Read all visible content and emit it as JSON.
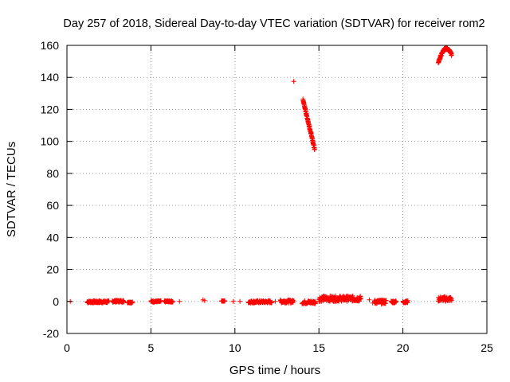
{
  "chart_data": {
    "type": "scatter",
    "title": "Day 257 of 2018, Sidereal Day-to-day VTEC variation (SDTVAR) for receiver rom2",
    "xlabel": "GPS time / hours",
    "ylabel": "SDTVAR / TECUs",
    "xlim": [
      0,
      25
    ],
    "ylim": [
      -20,
      160
    ],
    "xticks": [
      0,
      5,
      10,
      15,
      20,
      25
    ],
    "yticks": [
      -20,
      0,
      20,
      40,
      60,
      80,
      100,
      120,
      140,
      160
    ],
    "grid": true,
    "marker": "+",
    "color": "#ff0000",
    "series": [
      {
        "name": "SDTVAR",
        "segments": [
          {
            "x_range": [
              1.2,
              2.5
            ],
            "y": [
              -1,
              0.5
            ]
          },
          {
            "x_range": [
              2.7,
              3.4
            ],
            "y": [
              -0.5,
              0.8
            ]
          },
          {
            "x_range": [
              3.6,
              3.9
            ],
            "y": [
              -1,
              0
            ]
          },
          {
            "x_range": [
              5.0,
              5.6
            ],
            "y": [
              -0.5,
              0.5
            ]
          },
          {
            "x_range": [
              5.8,
              6.3
            ],
            "y": [
              -0.5,
              0.5
            ]
          },
          {
            "x_range": [
              9.2,
              9.4
            ],
            "y": [
              0,
              0.5
            ]
          },
          {
            "x_range": [
              10.8,
              12.2
            ],
            "y": [
              -1,
              0.5
            ]
          },
          {
            "x_range": [
              12.7,
              13.5
            ],
            "y": [
              -1,
              1
            ]
          },
          {
            "x_range": [
              14.0,
              14.8
            ],
            "y": [
              -1.5,
              0.5
            ]
          },
          {
            "x_range": [
              15.0,
              17.5
            ],
            "y": [
              0,
              3.5
            ]
          },
          {
            "x_range": [
              18.3,
              19.0
            ],
            "y": [
              -1.5,
              1
            ]
          },
          {
            "x_range": [
              19.3,
              19.6
            ],
            "y": [
              -1,
              0.5
            ]
          },
          {
            "x_range": [
              20.0,
              20.3
            ],
            "y": [
              -1,
              0.5
            ]
          },
          {
            "x_range": [
              22.1,
              22.9
            ],
            "y": [
              0,
              3
            ]
          }
        ],
        "points": [
          [
            0.2,
            0
          ],
          [
            6.7,
            0
          ],
          [
            8.1,
            1
          ],
          [
            8.2,
            0.5
          ],
          [
            9.9,
            0
          ],
          [
            10.3,
            0
          ],
          [
            12.4,
            0
          ],
          [
            13.5,
            137.5
          ],
          [
            18.0,
            1
          ],
          [
            18.2,
            -1
          ]
        ],
        "arcs": [
          {
            "x_range": [
              14.05,
              14.75
            ],
            "y_range": [
              126,
              95
            ]
          },
          {
            "x_range": [
              22.1,
              22.9
            ],
            "y_peak": 158,
            "y_start": 149,
            "y_end": 154
          }
        ]
      }
    ]
  }
}
